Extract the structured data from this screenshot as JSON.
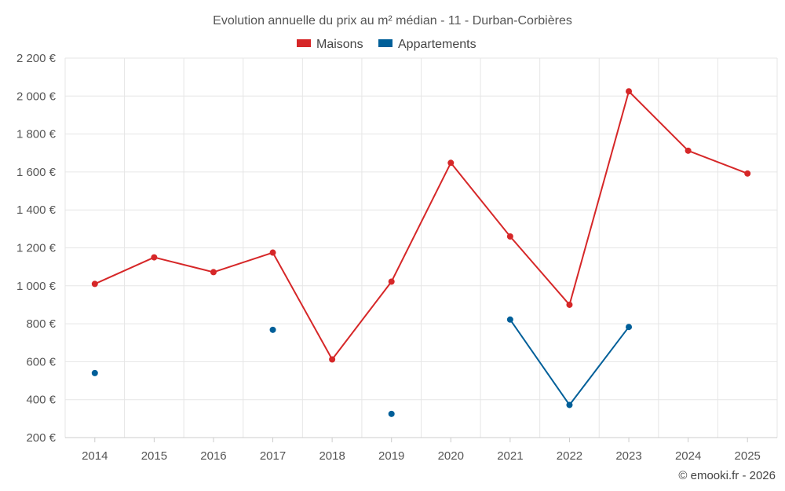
{
  "chart_data": {
    "type": "line",
    "title": "Evolution annuelle du prix au m² médian - 11 - Durban-Corbières",
    "categories": [
      "2014",
      "2015",
      "2016",
      "2017",
      "2018",
      "2019",
      "2020",
      "2021",
      "2022",
      "2023",
      "2024",
      "2025"
    ],
    "yticks": [
      "200 €",
      "400 €",
      "600 €",
      "800 €",
      "1 000 €",
      "1 200 €",
      "1 400 €",
      "1 600 €",
      "1 800 €",
      "2 000 €",
      "2 200 €"
    ],
    "ytick_values": [
      200,
      400,
      600,
      800,
      1000,
      1200,
      1400,
      1600,
      1800,
      2000,
      2200
    ],
    "ylim": [
      200,
      2200
    ],
    "xlabel": "",
    "ylabel": "",
    "grid": true,
    "legend_position": "top-center",
    "series": [
      {
        "name": "Maisons",
        "color": "#d62728",
        "values": [
          1010,
          1150,
          1072,
          1175,
          612,
          1022,
          1648,
          1260,
          900,
          2025,
          1712,
          1592
        ]
      },
      {
        "name": "Appartements",
        "color": "#005f99",
        "values": [
          540,
          null,
          null,
          768,
          null,
          325,
          null,
          822,
          372,
          783,
          null,
          null
        ]
      }
    ]
  },
  "credit": "© emooki.fr - 2026"
}
